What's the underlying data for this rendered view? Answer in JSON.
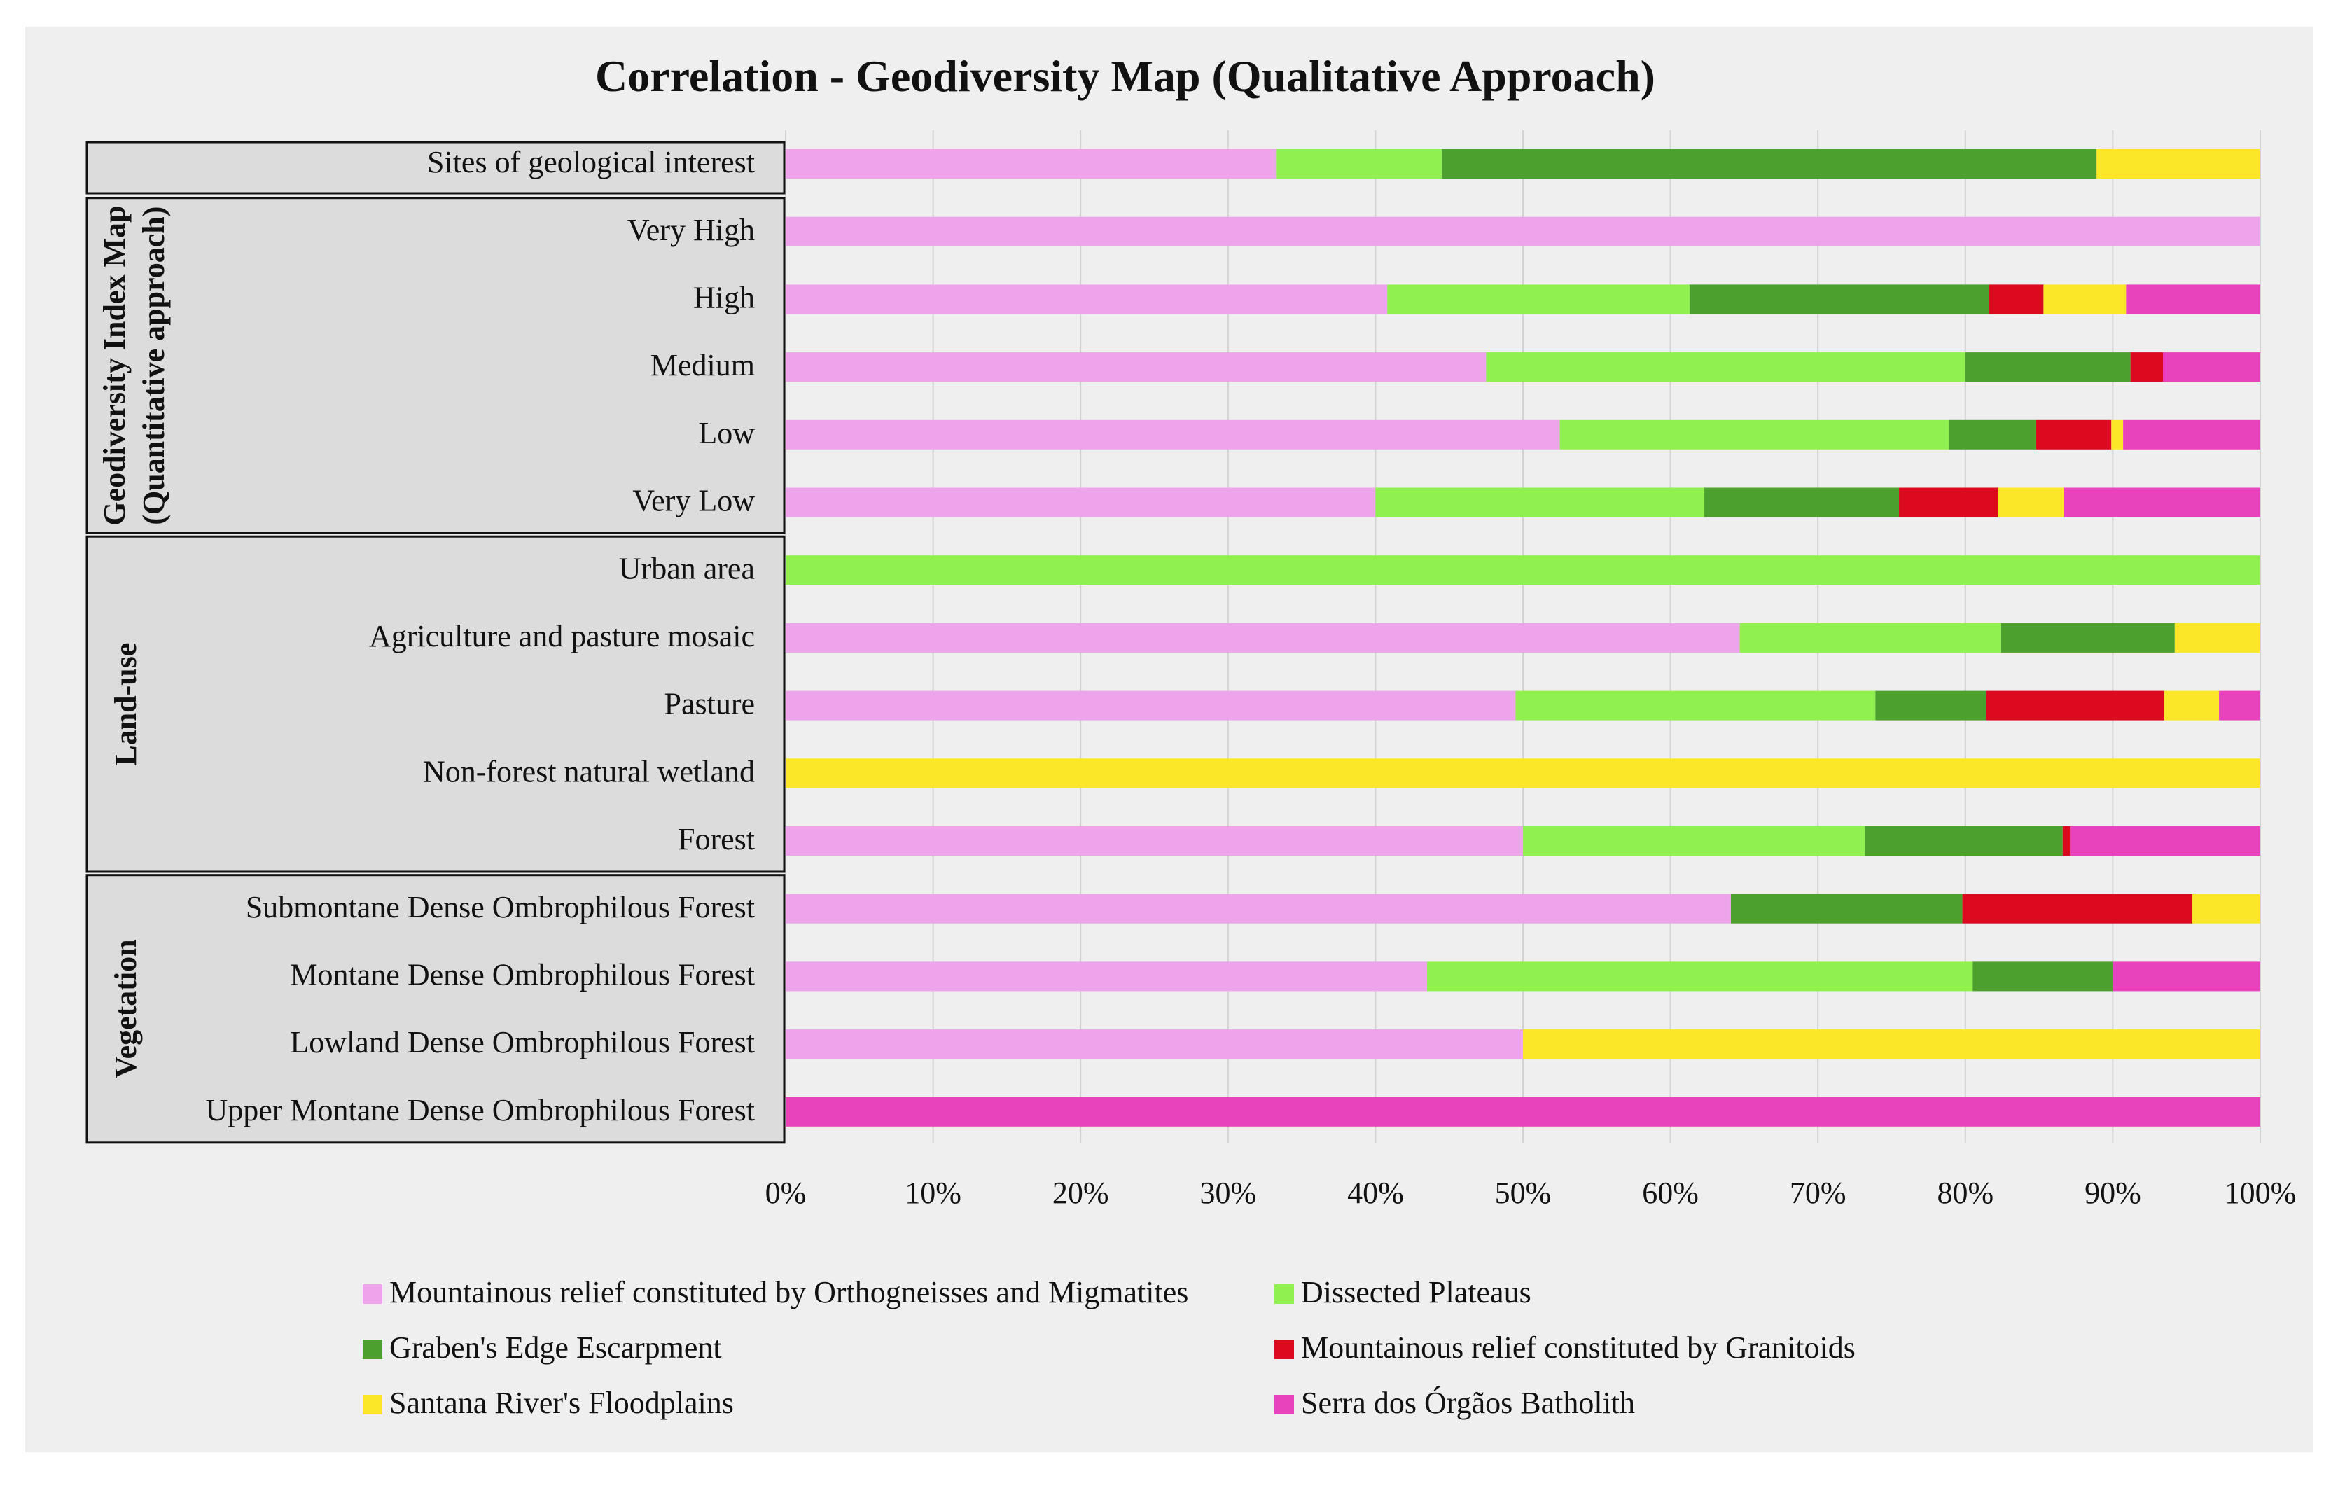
{
  "chart_data": {
    "type": "bar",
    "orientation": "horizontal",
    "stacked": "percent",
    "title": "Correlation - Geodiversity Map (Qualitative Approach)",
    "xlabel": "",
    "ylabel": "",
    "xlim": [
      0,
      100
    ],
    "x_ticks": [
      "0%",
      "10%",
      "20%",
      "30%",
      "40%",
      "50%",
      "60%",
      "70%",
      "80%",
      "90%",
      "100%"
    ],
    "grid": true,
    "legend_position": "bottom",
    "groups": [
      {
        "label": "",
        "rows": [
          0
        ]
      },
      {
        "label": "Geodiversity Index Map",
        "label2": "(Quantitative approach)",
        "rows": [
          1,
          2,
          3,
          4,
          5
        ]
      },
      {
        "label": "Land-use",
        "rows": [
          6,
          7,
          8,
          9,
          10
        ]
      },
      {
        "label": "Vegetation",
        "rows": [
          11,
          12,
          13,
          14
        ]
      }
    ],
    "categories": [
      "Sites of geological interest",
      "Very High",
      "High",
      "Medium",
      "Low",
      "Very Low",
      "Urban area",
      "Agriculture and pasture mosaic",
      "Pasture",
      "Non-forest natural wetland",
      "Forest",
      "Submontane Dense Ombrophilous Forest",
      "Montane Dense Ombrophilous Forest",
      "Lowland Dense Ombrophilous Forest",
      "Upper Montane Dense Ombrophilous Forest"
    ],
    "series": [
      {
        "name": "Mountainous relief constituted by Orthogneisses and Migmatites",
        "color": "#eea4ea",
        "values": [
          33.3,
          100,
          40.8,
          47.5,
          52.5,
          40,
          0,
          64.7,
          49.5,
          0,
          50,
          64.1,
          43.5,
          50,
          0
        ]
      },
      {
        "name": "Dissected Plateaus",
        "color": "#8ff04f",
        "values": [
          11.2,
          0,
          20.5,
          32.5,
          26.4,
          22.3,
          100,
          17.7,
          24.4,
          0,
          23.2,
          0,
          37,
          0,
          0
        ]
      },
      {
        "name": "Graben's Edge Escarpment",
        "color": "#4ca12e",
        "values": [
          44.4,
          0,
          20.3,
          11.2,
          5.9,
          13.2,
          0,
          11.8,
          7.5,
          0,
          13.4,
          15.7,
          9.5,
          0,
          0
        ]
      },
      {
        "name": "Mountainous relief constituted by Granitoids",
        "color": "#dc0a1e",
        "values": [
          0,
          0,
          3.7,
          2.2,
          5.1,
          6.7,
          0,
          0,
          12.1,
          0,
          0.5,
          15.6,
          0,
          0,
          0
        ]
      },
      {
        "name": "Santana River's Floodplains",
        "color": "#fbe628",
        "values": [
          11.1,
          0,
          5.6,
          0,
          0.8,
          4.5,
          0,
          5.8,
          3.7,
          100,
          0,
          4.6,
          0,
          50,
          0
        ]
      },
      {
        "name": "Serra dos Órgãos Batholith",
        "color": "#e843bd",
        "values": [
          0,
          0,
          9.1,
          6.6,
          9.3,
          13.3,
          0,
          0,
          2.8,
          0,
          12.9,
          0,
          10,
          0,
          100
        ]
      }
    ]
  }
}
